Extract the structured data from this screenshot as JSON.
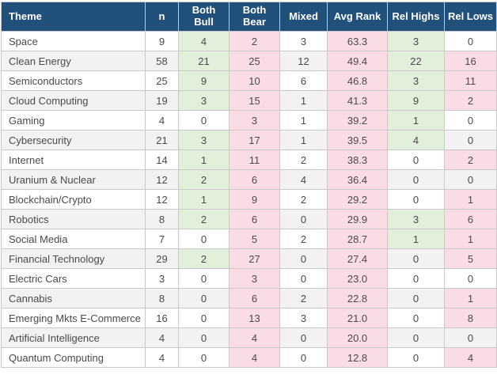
{
  "colors": {
    "header_bg": "#21507A",
    "header_text": "#FFFFFF",
    "row_bg": "#FFFFFF",
    "row_alt_bg": "#F2F2F2",
    "highlight_green": "#E2EFDA",
    "highlight_pink": "#FADCE4",
    "border": "#C9C9C9",
    "body_text": "#4A4A4A"
  },
  "chart_data": {
    "type": "table",
    "title": "",
    "columns": [
      "Theme",
      "n",
      "Both Bull",
      "Both Bear",
      "Mixed",
      "Avg Rank",
      "Rel Highs",
      "Rel Lows"
    ],
    "rows": [
      [
        "Space",
        "9",
        "4",
        "2",
        "3",
        "63.3",
        "3",
        "0"
      ],
      [
        "Clean Energy",
        "58",
        "21",
        "25",
        "12",
        "49.4",
        "22",
        "16"
      ],
      [
        "Semiconductors",
        "25",
        "9",
        "10",
        "6",
        "46.8",
        "3",
        "11"
      ],
      [
        "Cloud Computing",
        "19",
        "3",
        "15",
        "1",
        "41.3",
        "9",
        "2"
      ],
      [
        "Gaming",
        "4",
        "0",
        "3",
        "1",
        "39.2",
        "1",
        "0"
      ],
      [
        "Cybersecurity",
        "21",
        "3",
        "17",
        "1",
        "39.5",
        "4",
        "0"
      ],
      [
        "Internet",
        "14",
        "1",
        "11",
        "2",
        "38.3",
        "0",
        "2"
      ],
      [
        "Uranium & Nuclear",
        "12",
        "2",
        "6",
        "4",
        "36.4",
        "0",
        "0"
      ],
      [
        "Blockchain/Crypto",
        "12",
        "1",
        "9",
        "2",
        "29.2",
        "0",
        "1"
      ],
      [
        "Robotics",
        "8",
        "2",
        "6",
        "0",
        "29.9",
        "3",
        "6"
      ],
      [
        "Social Media",
        "7",
        "0",
        "5",
        "2",
        "28.7",
        "1",
        "1"
      ],
      [
        "Financial Technology",
        "29",
        "2",
        "27",
        "0",
        "27.4",
        "0",
        "5"
      ],
      [
        "Electric Cars",
        "3",
        "0",
        "3",
        "0",
        "23.0",
        "0",
        "0"
      ],
      [
        "Cannabis",
        "8",
        "0",
        "6",
        "2",
        "22.8",
        "0",
        "1"
      ],
      [
        "Emerging Mkts E-Commerce",
        "16",
        "0",
        "13",
        "3",
        "21.0",
        "0",
        "8"
      ],
      [
        "Artificial Intelligence",
        "4",
        "0",
        "4",
        "0",
        "20.0",
        "0",
        "0"
      ],
      [
        "Quantum Computing",
        "4",
        "0",
        "4",
        "0",
        "12.8",
        "0",
        "4"
      ]
    ]
  }
}
